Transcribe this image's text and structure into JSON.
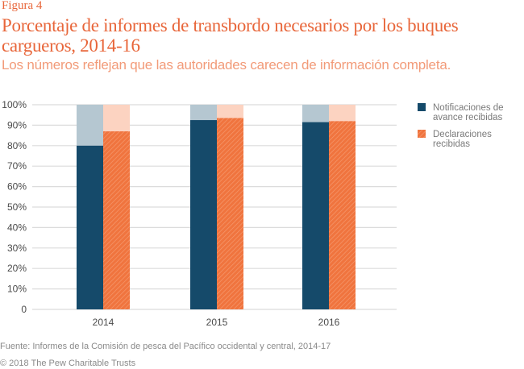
{
  "header": {
    "figure_label": "Figura 4",
    "title": "Porcentaje de informes de transbordo necesarios por los buques cargueros, 2014-16",
    "subtitle": "Los números reflejan que las autoridades carecen de información completa."
  },
  "footer": {
    "source": "Fuente: Informes de la Comisión de pesca del Pacífico occidental y central, 2014-17",
    "copyright": "© 2018 The Pew Charitable Trusts"
  },
  "colors": {
    "blue": "#154a6a",
    "blue_light": "#b5c7d1",
    "orange": "#f0743e",
    "orange_light": "#fcd3c1",
    "grid": "#dcdcdc",
    "title": "#e8663a"
  },
  "chart_data": {
    "type": "bar",
    "title": "Porcentaje de informes de transbordo necesarios por los buques cargueros, 2014-16",
    "xlabel": "",
    "ylabel": "",
    "categories": [
      "2014",
      "2015",
      "2016"
    ],
    "series": [
      {
        "name": "Notificaciones de avance recibidas",
        "values": [
          80,
          92.5,
          91.5
        ]
      },
      {
        "name": "Declaraciones recibidas",
        "values": [
          87,
          93.5,
          92
        ]
      }
    ],
    "background_total": 100,
    "ylim": [
      0,
      100
    ],
    "yticks": [
      0,
      10,
      20,
      30,
      40,
      50,
      60,
      70,
      80,
      90,
      100
    ],
    "ytick_labels": [
      "0",
      "10%",
      "20%",
      "30%",
      "40%",
      "50%",
      "60%",
      "70%",
      "80%",
      "90%",
      "100%"
    ],
    "grid": true,
    "legend_position": "right",
    "legend": [
      {
        "lines": [
          "Notificaciones de",
          "avance recibidas"
        ]
      },
      {
        "lines": [
          "Declaraciones",
          "recibidas"
        ]
      }
    ]
  }
}
